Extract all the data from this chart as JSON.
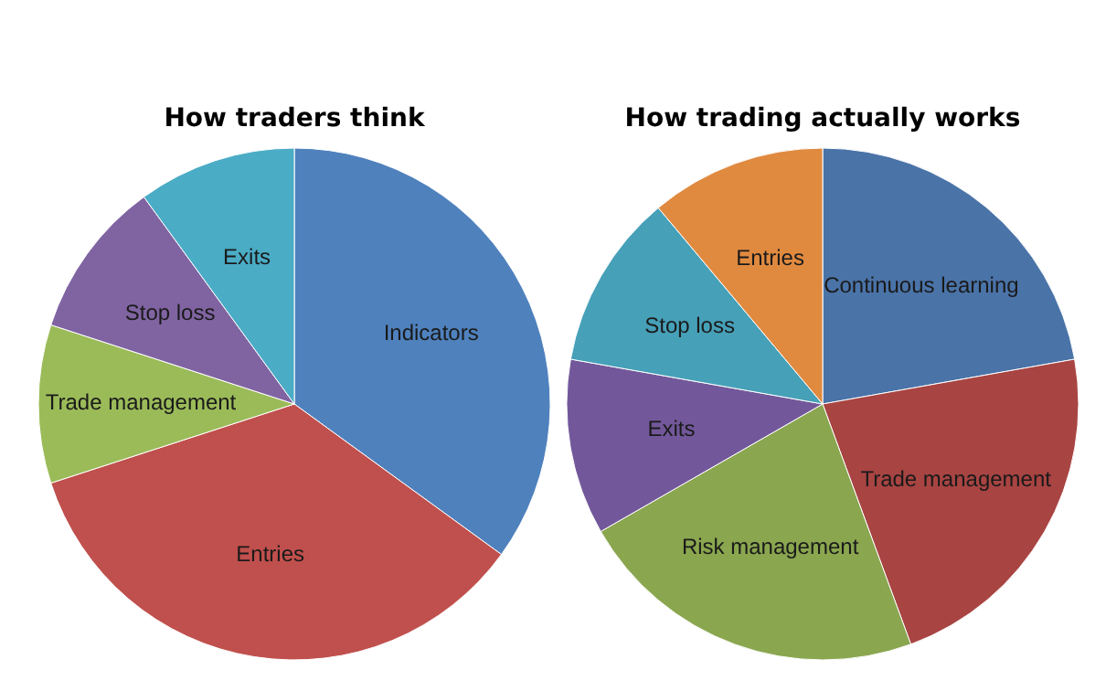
{
  "chart_data": [
    {
      "type": "pie",
      "title": "How traders think",
      "categories": [
        "Indicators",
        "Entries",
        "Trade management",
        "Stop loss",
        "Exits"
      ],
      "values": [
        35,
        35,
        10,
        10,
        10
      ],
      "colors": [
        "#4f81bd",
        "#c0504d",
        "#9bbb59",
        "#8064a2",
        "#4bacc6"
      ]
    },
    {
      "type": "pie",
      "title": "How trading actually works",
      "categories": [
        "Continuous learning",
        "Trade management",
        "Risk management",
        "Exits",
        "Stop loss",
        "Entries"
      ],
      "values": [
        22.2,
        22.2,
        22.3,
        11.1,
        11.1,
        11.1
      ],
      "colors": [
        "#4a73a8",
        "#a84442",
        "#8aa64f",
        "#72589a",
        "#46a0b8",
        "#e08a40"
      ]
    }
  ]
}
